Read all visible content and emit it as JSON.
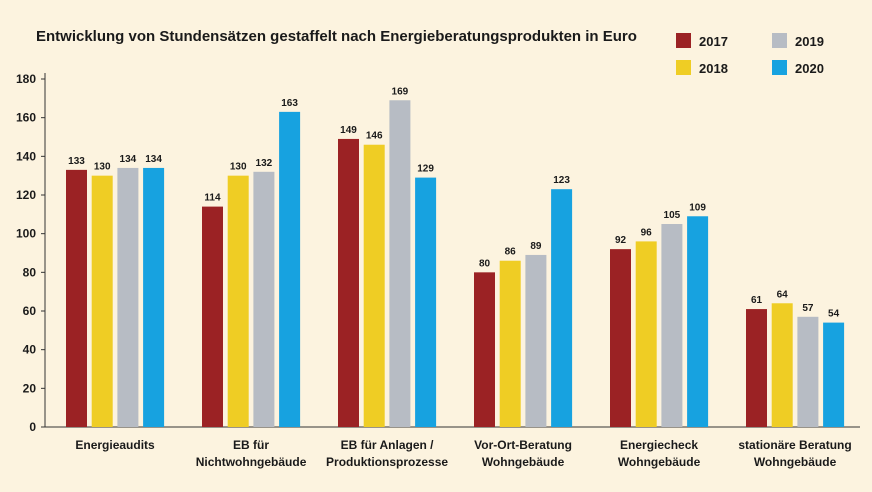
{
  "chart_data": {
    "type": "bar",
    "title": "Entwicklung von Stundensätzen gestaffelt nach Energieberatungsprodukten in Euro",
    "categories": [
      [
        "Energieaudits"
      ],
      [
        "EB für",
        "Nichtwohngebäude"
      ],
      [
        "EB für Anlagen /",
        "Produktionsprozesse"
      ],
      [
        "Vor-Ort-Beratung",
        "Wohngebäude"
      ],
      [
        "Energiecheck",
        "Wohngebäude"
      ],
      [
        "stationäre Beratung",
        "Wohngebäude"
      ]
    ],
    "series": [
      {
        "name": "2017",
        "color": "#9b2224",
        "values": [
          133,
          114,
          149,
          80,
          92,
          61
        ]
      },
      {
        "name": "2018",
        "color": "#efcd24",
        "values": [
          130,
          130,
          146,
          86,
          96,
          64
        ]
      },
      {
        "name": "2019",
        "color": "#b7bcc4",
        "values": [
          134,
          132,
          169,
          89,
          105,
          57
        ]
      },
      {
        "name": "2020",
        "color": "#17a2e0",
        "values": [
          134,
          163,
          129,
          123,
          109,
          54
        ]
      }
    ],
    "ylim": [
      0,
      180
    ],
    "yticks": [
      0,
      20,
      40,
      60,
      80,
      100,
      120,
      140,
      160,
      180
    ],
    "grid": false,
    "legend": "top-right",
    "xlabel": "",
    "ylabel": ""
  }
}
